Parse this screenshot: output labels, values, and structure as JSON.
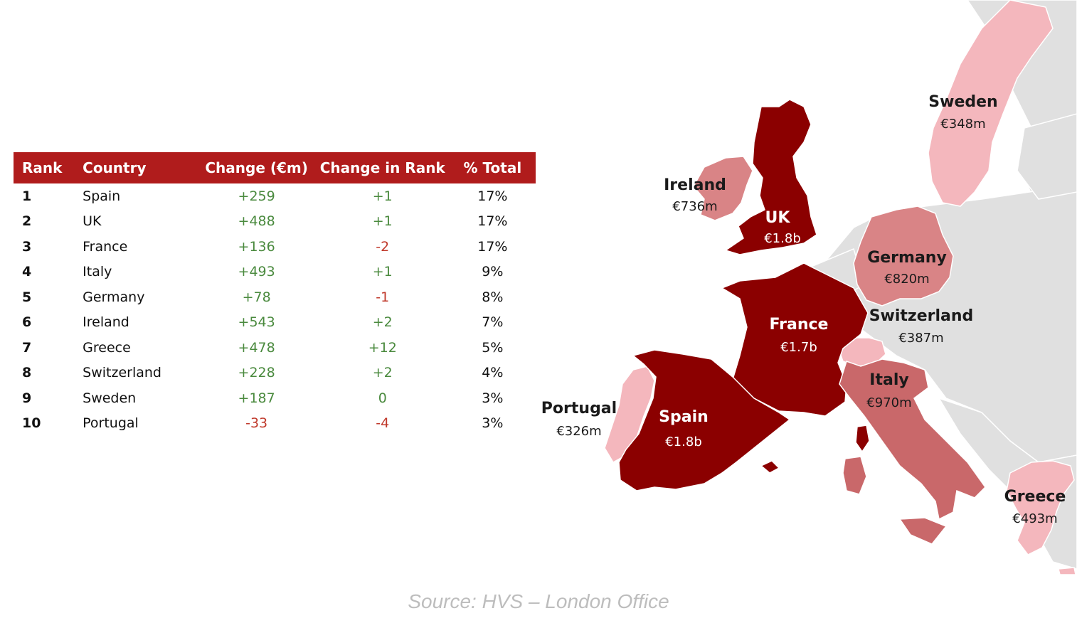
{
  "table": {
    "headers": {
      "rank": "Rank",
      "country": "Country",
      "change": "Change (€m)",
      "change_in_rank": "Change in Rank",
      "pct_total": "% Total"
    },
    "rows": [
      {
        "rank": "1",
        "country": "Spain",
        "change": "+259",
        "change_in_rank": "+1",
        "pct_total": "17%"
      },
      {
        "rank": "2",
        "country": "UK",
        "change": "+488",
        "change_in_rank": "+1",
        "pct_total": "17%"
      },
      {
        "rank": "3",
        "country": "France",
        "change": "+136",
        "change_in_rank": "-2",
        "pct_total": "17%"
      },
      {
        "rank": "4",
        "country": "Italy",
        "change": "+493",
        "change_in_rank": "+1",
        "pct_total": "9%"
      },
      {
        "rank": "5",
        "country": "Germany",
        "change": "+78",
        "change_in_rank": "-1",
        "pct_total": "8%"
      },
      {
        "rank": "6",
        "country": "Ireland",
        "change": "+543",
        "change_in_rank": "+2",
        "pct_total": "7%"
      },
      {
        "rank": "7",
        "country": "Greece",
        "change": "+478",
        "change_in_rank": "+12",
        "pct_total": "5%"
      },
      {
        "rank": "8",
        "country": "Switzerland",
        "change": "+228",
        "change_in_rank": "+2",
        "pct_total": "4%"
      },
      {
        "rank": "9",
        "country": "Sweden",
        "change": "+187",
        "change_in_rank": "0",
        "pct_total": "3%"
      },
      {
        "rank": "10",
        "country": "Portugal",
        "change": "-33",
        "change_in_rank": "-4",
        "pct_total": "3%"
      }
    ]
  },
  "map": {
    "labels": {
      "sweden": {
        "name": "Sweden",
        "value": "€348m"
      },
      "ireland": {
        "name": "Ireland",
        "value": "€736m"
      },
      "uk": {
        "name": "UK",
        "value": "€1.8b"
      },
      "germany": {
        "name": "Germany",
        "value": "€820m"
      },
      "switzerland": {
        "name": "Switzerland",
        "value": "€387m"
      },
      "france": {
        "name": "France",
        "value": "€1.7b"
      },
      "italy": {
        "name": "Italy",
        "value": "€970m"
      },
      "portugal": {
        "name": "Portugal",
        "value": "€326m"
      },
      "spain": {
        "name": "Spain",
        "value": "€1.8b"
      },
      "greece": {
        "name": "Greece",
        "value": "€493m"
      }
    },
    "colors": {
      "dark": "#8b0000",
      "medium": "#c9686a",
      "light_medium": "#d98486",
      "light": "#f4b7bd",
      "land_other": "#e0e0e0",
      "border": "#ffffff"
    }
  },
  "source": "Source: HVS – London Office"
}
